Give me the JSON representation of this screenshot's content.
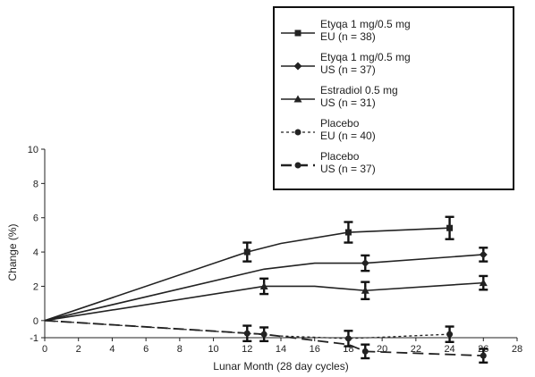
{
  "chart_data": {
    "type": "line",
    "title": "",
    "xlabel": "Lunar Month (28 day cycles)",
    "ylabel": "Change (%)",
    "xlim": [
      0,
      28
    ],
    "ylim": [
      -1,
      10
    ],
    "xticks": [
      "0",
      "2",
      "4",
      "6",
      "8",
      "10",
      "12",
      "14",
      "16",
      "18",
      "20",
      "22",
      "24",
      "26",
      "28"
    ],
    "yticks": [
      "-1",
      "0",
      "2",
      "4",
      "6",
      "8",
      "10"
    ],
    "grid": false,
    "legend_placement": "top-right",
    "series": [
      {
        "legend_line1": "Etyqa 1 mg/0.5 mg",
        "legend_line2": "EU (n = 38)",
        "style": "solid-thin",
        "marker": "square",
        "x": [
          0,
          12,
          14,
          18,
          24
        ],
        "y": [
          0,
          4.0,
          4.5,
          5.15,
          5.4
        ],
        "err_x": [
          12,
          18,
          24
        ],
        "err_y": [
          4.0,
          5.15,
          5.4
        ],
        "err_half": [
          0.55,
          0.6,
          0.65
        ]
      },
      {
        "legend_line1": "Etyqa 1 mg/0.5 mg",
        "legend_line2": "US (n = 37)",
        "style": "solid-thin",
        "marker": "diamond",
        "x": [
          0,
          13,
          16,
          19,
          26
        ],
        "y": [
          0,
          3.0,
          3.35,
          3.35,
          3.85
        ],
        "err_x": [
          19,
          26
        ],
        "err_y": [
          3.35,
          3.85
        ],
        "err_half": [
          0.45,
          0.4
        ]
      },
      {
        "legend_line1": "Estradiol 0.5 mg",
        "legend_line2": "US (n = 31)",
        "style": "solid-thin",
        "marker": "triangle",
        "x": [
          0,
          13,
          16,
          19,
          26
        ],
        "y": [
          0,
          2.0,
          2.0,
          1.75,
          2.2
        ],
        "err_x": [
          13,
          19,
          26
        ],
        "err_y": [
          2.0,
          1.75,
          2.2
        ],
        "err_half": [
          0.45,
          0.5,
          0.4
        ]
      },
      {
        "legend_line1": "Placebo",
        "legend_line2": "EU (n = 40)",
        "style": "short-dash",
        "marker": "circle",
        "x": [
          0,
          12,
          14,
          18,
          24
        ],
        "y": [
          0,
          -0.75,
          -0.9,
          -1.05,
          -0.8
        ],
        "err_x": [
          12,
          18,
          24
        ],
        "err_y": [
          -0.75,
          -1.05,
          -0.8
        ],
        "err_half": [
          0.45,
          0.45,
          0.45
        ]
      },
      {
        "legend_line1": "Placebo",
        "legend_line2": "US (n = 37)",
        "style": "long-dash",
        "marker": "circle",
        "x": [
          0,
          13,
          18,
          19,
          26
        ],
        "y": [
          0,
          -0.8,
          -1.4,
          -1.8,
          -2.05
        ],
        "err_x": [
          13,
          19,
          26
        ],
        "err_y": [
          -0.8,
          -1.8,
          -2.05
        ],
        "err_half": [
          0.4,
          0.4,
          0.4
        ]
      }
    ]
  }
}
